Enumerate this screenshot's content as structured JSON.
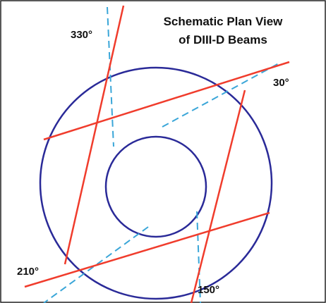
{
  "title": {
    "line1": "Schematic Plan View",
    "line2": "of DIII-D Beams"
  },
  "beams": [
    {
      "label": "330°"
    },
    {
      "label": "30°"
    },
    {
      "label": "210°"
    },
    {
      "label": "150°"
    }
  ]
}
